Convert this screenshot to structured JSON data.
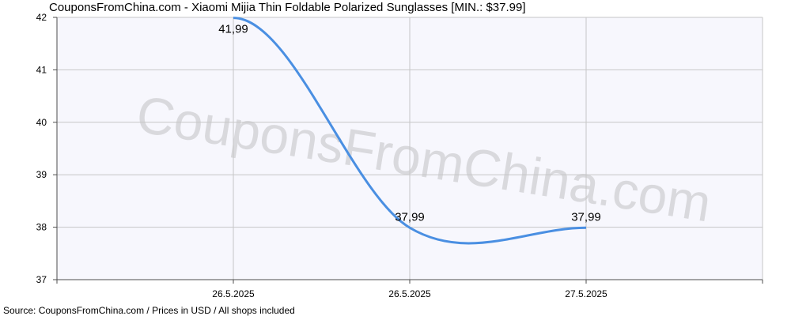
{
  "title": "CouponsFromChina.com - Xiaomi Mijia Thin Foldable Polarized Sunglasses [MIN.: $37.99]",
  "source": "Source:  CouponsFromChina.com / Prices in USD / All shops included",
  "watermark": "CouponsFromChina.com",
  "colors": {
    "line": "#4a8fe2",
    "plot_bg": "#f7f7fd",
    "grid": "#c6c6c6",
    "axis": "#4d4d4d",
    "watermark": "#d9d9dd"
  },
  "chart_data": {
    "type": "line",
    "title": "CouponsFromChina.com - Xiaomi Mijia Thin Foldable Polarized Sunglasses [MIN.: $37.99]",
    "xlabel": "",
    "ylabel": "",
    "categories": [
      "26.5.2025",
      "26.5.2025",
      "27.5.2025"
    ],
    "values": [
      41.99,
      37.99,
      37.99
    ],
    "data_labels": [
      "41,99",
      "37,99",
      "37,99"
    ],
    "ylim": [
      37,
      42
    ],
    "yticks": [
      37,
      38,
      39,
      40,
      41,
      42
    ],
    "grid": true,
    "smooth": true
  }
}
